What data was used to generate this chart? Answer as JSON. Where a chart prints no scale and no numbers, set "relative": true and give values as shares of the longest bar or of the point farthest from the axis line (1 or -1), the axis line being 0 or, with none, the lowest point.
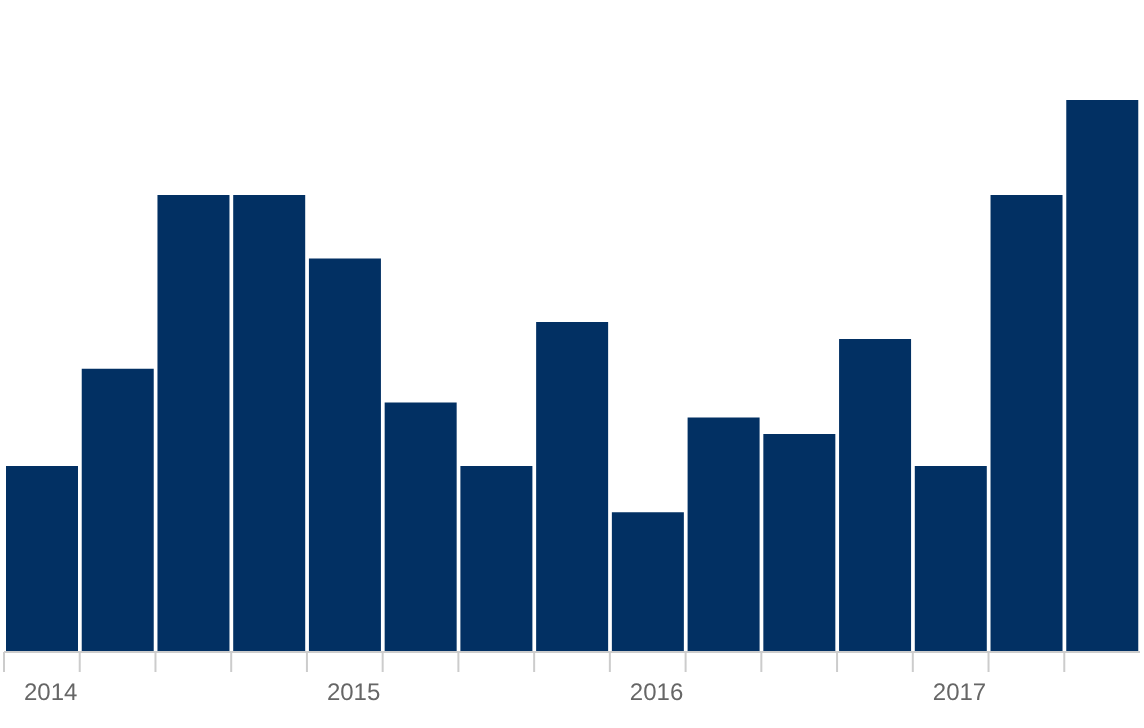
{
  "chart_data": {
    "type": "bar",
    "relative": true,
    "categories": [
      "2014",
      null,
      null,
      null,
      "2015",
      null,
      null,
      null,
      "2016",
      null,
      null,
      null,
      "2017",
      null,
      null
    ],
    "values": [
      0.337,
      0.513,
      0.828,
      0.828,
      0.713,
      0.452,
      0.337,
      0.598,
      0.253,
      0.425,
      0.395,
      0.567,
      0.337,
      0.828,
      1
    ],
    "color": "#023063",
    "grid": false
  }
}
